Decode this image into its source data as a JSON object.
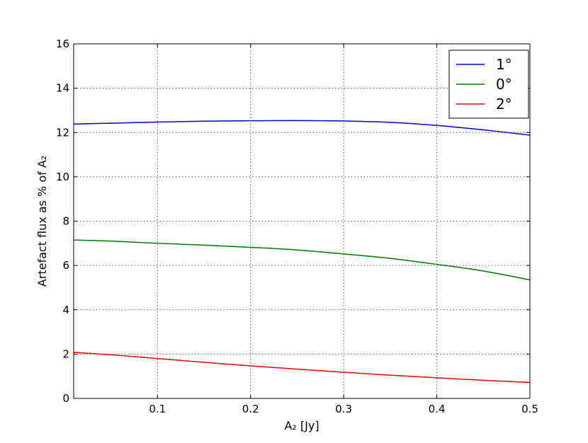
{
  "chart_data": {
    "type": "line",
    "title": "",
    "xlabel": "A₂ [Jy]",
    "ylabel": "Artefact flux as % of A₂",
    "xlim": [
      0.01,
      0.5
    ],
    "ylim": [
      0,
      16
    ],
    "xticks": [
      0.1,
      0.2,
      0.3,
      0.4,
      0.5
    ],
    "xtick_labels": [
      "0.1",
      "0.2",
      "0.3",
      "0.4",
      "0.5"
    ],
    "yticks": [
      0,
      2,
      4,
      6,
      8,
      10,
      12,
      14,
      16
    ],
    "ytick_labels": [
      "0",
      "2",
      "4",
      "6",
      "8",
      "10",
      "12",
      "14",
      "16"
    ],
    "grid": true,
    "legend_position": "top-right",
    "series": [
      {
        "name": "1°",
        "color": "#0000cc",
        "x": [
          0.01,
          0.05,
          0.1,
          0.15,
          0.2,
          0.25,
          0.3,
          0.35,
          0.4,
          0.45,
          0.5
        ],
        "y": [
          12.38,
          12.42,
          12.47,
          12.51,
          12.53,
          12.54,
          12.52,
          12.46,
          12.32,
          12.12,
          11.88
        ]
      },
      {
        "name": "0°",
        "color": "#007700",
        "x": [
          0.01,
          0.05,
          0.1,
          0.15,
          0.2,
          0.25,
          0.3,
          0.35,
          0.4,
          0.45,
          0.5
        ],
        "y": [
          7.15,
          7.1,
          7.0,
          6.92,
          6.82,
          6.7,
          6.52,
          6.32,
          6.05,
          5.75,
          5.35
        ]
      },
      {
        "name": "2°",
        "color": "#ee0000",
        "x": [
          0.01,
          0.05,
          0.1,
          0.15,
          0.2,
          0.25,
          0.3,
          0.35,
          0.4,
          0.45,
          0.5
        ],
        "y": [
          2.08,
          1.97,
          1.8,
          1.63,
          1.47,
          1.32,
          1.18,
          1.05,
          0.93,
          0.82,
          0.72
        ]
      }
    ]
  }
}
